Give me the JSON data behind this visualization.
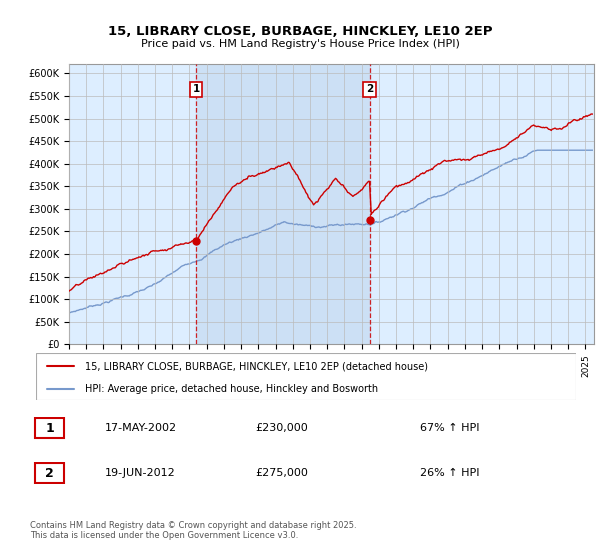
{
  "title_line1": "15, LIBRARY CLOSE, BURBAGE, HINCKLEY, LE10 2EP",
  "title_line2": "Price paid vs. HM Land Registry's House Price Index (HPI)",
  "ylabel_ticks": [
    "£0",
    "£50K",
    "£100K",
    "£150K",
    "£200K",
    "£250K",
    "£300K",
    "£350K",
    "£400K",
    "£450K",
    "£500K",
    "£550K",
    "£600K"
  ],
  "ytick_values": [
    0,
    50000,
    100000,
    150000,
    200000,
    250000,
    300000,
    350000,
    400000,
    450000,
    500000,
    550000,
    600000
  ],
  "ylim": [
    0,
    620000
  ],
  "sale1_x": 2002.38,
  "sale1_price": 230000,
  "sale1_label": "1",
  "sale1_date_str": "17-MAY-2002",
  "sale1_pct": "67% ↑ HPI",
  "sale2_x": 2012.47,
  "sale2_price": 275000,
  "sale2_label": "2",
  "sale2_date_str": "19-JUN-2012",
  "sale2_pct": "26% ↑ HPI",
  "red_color": "#cc0000",
  "blue_color": "#7799cc",
  "vline_color": "#cc0000",
  "grid_color": "#bbbbbb",
  "bg_color": "#ddeeff",
  "shade_color": "#cce0f5",
  "legend1_text": "15, LIBRARY CLOSE, BURBAGE, HINCKLEY, LE10 2EP (detached house)",
  "legend2_text": "HPI: Average price, detached house, Hinckley and Bosworth",
  "footer_text": "Contains HM Land Registry data © Crown copyright and database right 2025.\nThis data is licensed under the Open Government Licence v3.0.",
  "ann1_price": "£230,000",
  "ann2_price": "£275,000",
  "xmin": 1995,
  "xmax": 2025.5
}
